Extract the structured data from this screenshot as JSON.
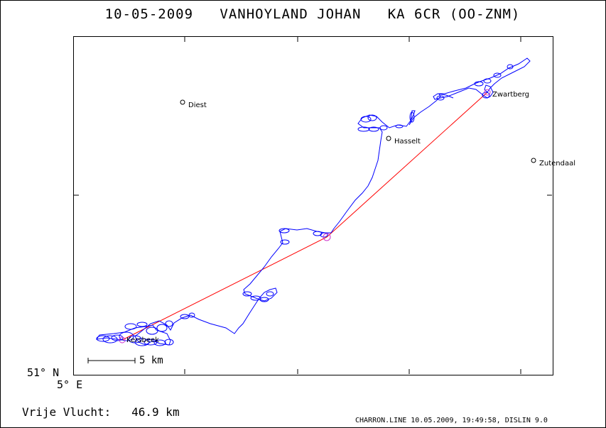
{
  "header": {
    "date": "10-05-2009",
    "pilot": "VANHOYLAND JOHAN",
    "glider": "KA 6CR (OO-ZNM)"
  },
  "map": {
    "towns": [
      {
        "name": "Diest"
      },
      {
        "name": "Hasselt"
      },
      {
        "name": "Zwartberg"
      },
      {
        "name": "Zutendaal"
      },
      {
        "name": "Kersbeek"
      }
    ],
    "lat_label": "51° N",
    "lon_label": "5° E",
    "scale_label": "5 km",
    "colors": {
      "track": "#0000ff",
      "task": "#ff0000",
      "turnpoint": "#cc33cc"
    }
  },
  "footer": {
    "label": "Vrije Vlucht:",
    "distance": "46.9 km",
    "software": "CHARRON.LINE 10.05.2009, 19:49:58, DISLIN 9.0"
  }
}
